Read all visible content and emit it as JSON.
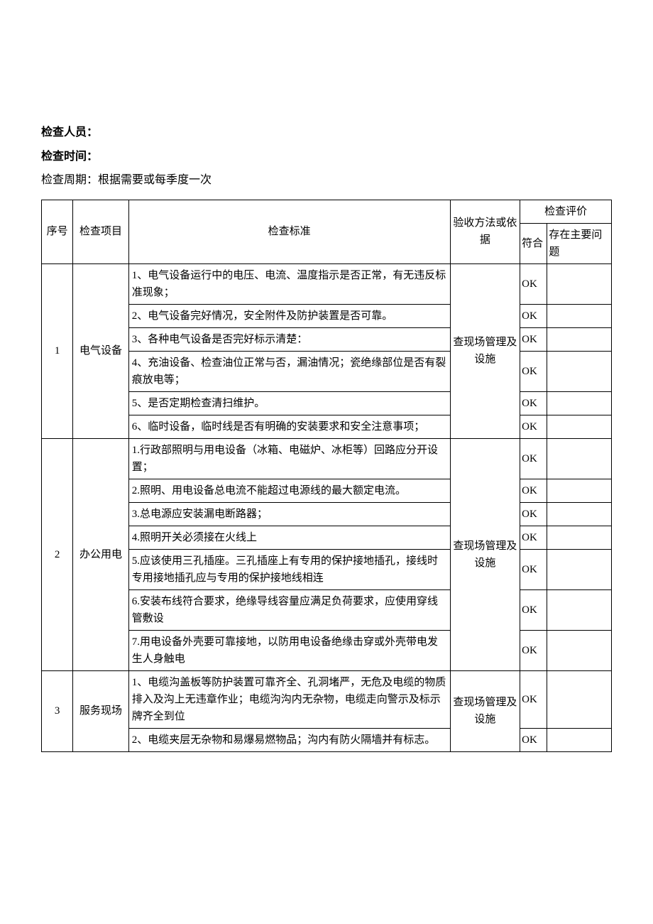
{
  "header": {
    "inspector_label": "检查人员：",
    "time_label": "检查时间：",
    "cycle_label": "检查周期：根据需要或每季度一次"
  },
  "columns": {
    "seq": "序号",
    "item": "检查项目",
    "standard": "检查标准",
    "basis": "验收方法或依据",
    "eval": "检查评价",
    "ok": "符合",
    "issue": "存在主要问题"
  },
  "groups": [
    {
      "seq": "1",
      "item": "电气设备",
      "basis": "查现场管理及设施",
      "rows": [
        {
          "std": "1、电气设备运行中的电压、电流、温度指示是否正常，有无违反标准现象；",
          "ok": "OK",
          "issue": ""
        },
        {
          "std": "2、电气设备完好情况，安全附件及防护装置是否可靠。",
          "ok": "OK",
          "issue": ""
        },
        {
          "std": "3、各种电气设备是否完好标示清楚：",
          "ok": "OK",
          "issue": ""
        },
        {
          "std": "4、充油设备、检查油位正常与否，漏油情况；瓷绝缘部位是否有裂痕放电等；",
          "ok": "OK",
          "issue": ""
        },
        {
          "std": "5、是否定期检查清扫维护。",
          "ok": "OK",
          "issue": ""
        },
        {
          "std": "6、临时设备，临时线是否有明确的安装要求和安全注意事项；",
          "ok": "OK",
          "issue": ""
        }
      ]
    },
    {
      "seq": "2",
      "item": "办公用电",
      "basis": "查现场管理及设施",
      "rows": [
        {
          "std": "1.行政部照明与用电设备（冰箱、电磁炉、冰柜等）回路应分开设置；",
          "ok": "OK",
          "issue": ""
        },
        {
          "std": "2.照明、用电设备总电流不能超过电源线的最大额定电流。",
          "ok": "OK",
          "issue": ""
        },
        {
          "std": "3.总电源应安装漏电断路器；",
          "ok": "OK",
          "issue": ""
        },
        {
          "std": "4.照明开关必须接在火线上",
          "ok": "OK",
          "issue": ""
        },
        {
          "std": "5.应该使用三孔插座。三孔插座上有专用的保护接地插孔，接线时专用接地插孔应与专用的保护接地线相连",
          "ok": "OK",
          "issue": ""
        },
        {
          "std": "6.安装布线符合要求，绝缘导线容量应满足负荷要求，应使用穿线管敷设",
          "ok": "OK",
          "issue": ""
        },
        {
          "std": "7.用电设备外壳要可靠接地，以防用电设备绝缘击穿或外壳带电发生人身触电",
          "ok": "OK",
          "issue": ""
        }
      ]
    },
    {
      "seq": "3",
      "item": "服务现场",
      "basis": "查现场管理及设施",
      "rows": [
        {
          "std": "1、电缆沟盖板等防护装置可靠齐全、孔洞堵严，无危及电缆的物质排入及沟上无违章作业；电缆沟沟内无杂物，电缆走向警示及标示牌齐全到位",
          "ok": "OK",
          "issue": ""
        },
        {
          "std": "2、电缆夹层无杂物和易爆易燃物品；沟内有防火隔墙并有标志。",
          "ok": "OK",
          "issue": ""
        }
      ]
    }
  ]
}
